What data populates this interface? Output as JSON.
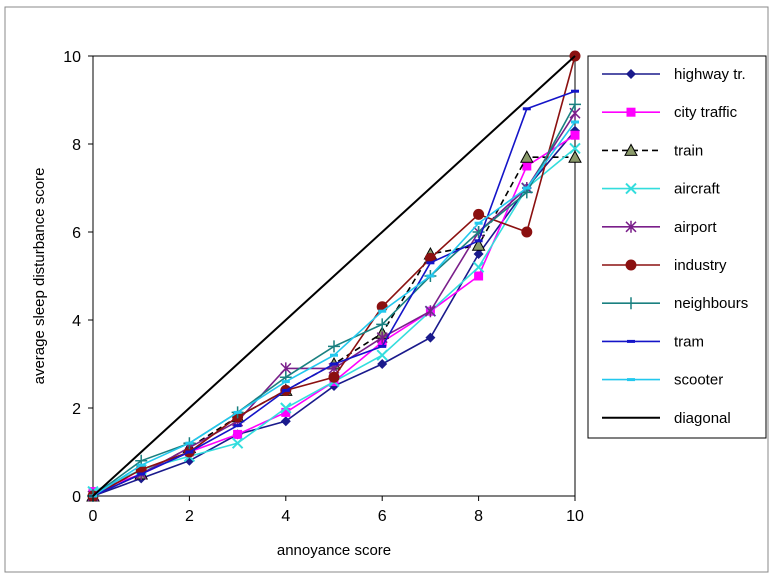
{
  "chart_data": {
    "type": "line",
    "xlabel": "annoyance score",
    "ylabel": "average sleep disturbance score",
    "xlim": [
      0,
      10
    ],
    "ylim": [
      0,
      10
    ],
    "xticks": [
      0,
      2,
      4,
      6,
      8,
      10
    ],
    "yticks": [
      0,
      2,
      4,
      6,
      8,
      10
    ],
    "grid": false,
    "legend_position": "right",
    "x": [
      0,
      1,
      2,
      3,
      4,
      5,
      6,
      7,
      8,
      9,
      10
    ],
    "series": [
      {
        "name": "highway tr.",
        "color": "#1a1a8c",
        "dash": "",
        "marker": "diamond",
        "values": [
          0.0,
          0.4,
          0.8,
          1.4,
          1.7,
          2.5,
          3.0,
          3.6,
          5.5,
          7.0,
          8.3
        ]
      },
      {
        "name": "city traffic",
        "color": "#ff00ff",
        "dash": "",
        "marker": "square",
        "values": [
          0.1,
          0.5,
          1.0,
          1.4,
          1.9,
          2.6,
          3.5,
          4.2,
          5.0,
          7.5,
          8.2
        ]
      },
      {
        "name": "train",
        "color": "#000000",
        "dash": "6,4",
        "marker": "triangle",
        "values": [
          0.0,
          0.5,
          1.1,
          1.8,
          2.4,
          3.0,
          3.7,
          5.5,
          5.7,
          7.7,
          7.7
        ]
      },
      {
        "name": "aircraft",
        "color": "#33dddd",
        "dash": "",
        "marker": "x",
        "values": [
          0.1,
          0.6,
          0.9,
          1.2,
          2.0,
          2.6,
          3.2,
          4.2,
          5.2,
          7.0,
          7.9
        ]
      },
      {
        "name": "airport",
        "color": "#7a1f8a",
        "dash": "",
        "marker": "star",
        "values": [
          0.0,
          0.5,
          1.1,
          1.7,
          2.9,
          2.9,
          3.6,
          4.2,
          6.0,
          7.0,
          8.7
        ]
      },
      {
        "name": "industry",
        "color": "#8b1010",
        "dash": "",
        "marker": "circle",
        "values": [
          0.0,
          0.6,
          1.0,
          1.8,
          2.4,
          2.7,
          4.3,
          5.4,
          6.4,
          6.0,
          10.0
        ]
      },
      {
        "name": "neighbours",
        "color": "#1a8080",
        "dash": "",
        "marker": "plus",
        "values": [
          0.0,
          0.8,
          1.2,
          1.9,
          2.7,
          3.4,
          3.9,
          5.0,
          6.0,
          6.9,
          8.9
        ]
      },
      {
        "name": "tram",
        "color": "#1414c8",
        "dash": "",
        "marker": "dash",
        "values": [
          0.0,
          0.5,
          1.0,
          1.6,
          2.4,
          3.0,
          3.4,
          5.3,
          5.8,
          8.8,
          9.2
        ]
      },
      {
        "name": "scooter",
        "color": "#22c8ee",
        "dash": "",
        "marker": "dash",
        "values": [
          0.0,
          0.7,
          1.2,
          1.9,
          2.6,
          3.2,
          4.2,
          5.0,
          6.2,
          7.0,
          8.5
        ]
      },
      {
        "name": "diagonal",
        "color": "#000000",
        "dash": "",
        "marker": "none",
        "values": [
          0,
          1,
          2,
          3,
          4,
          5,
          6,
          7,
          8,
          9,
          10
        ]
      }
    ]
  }
}
